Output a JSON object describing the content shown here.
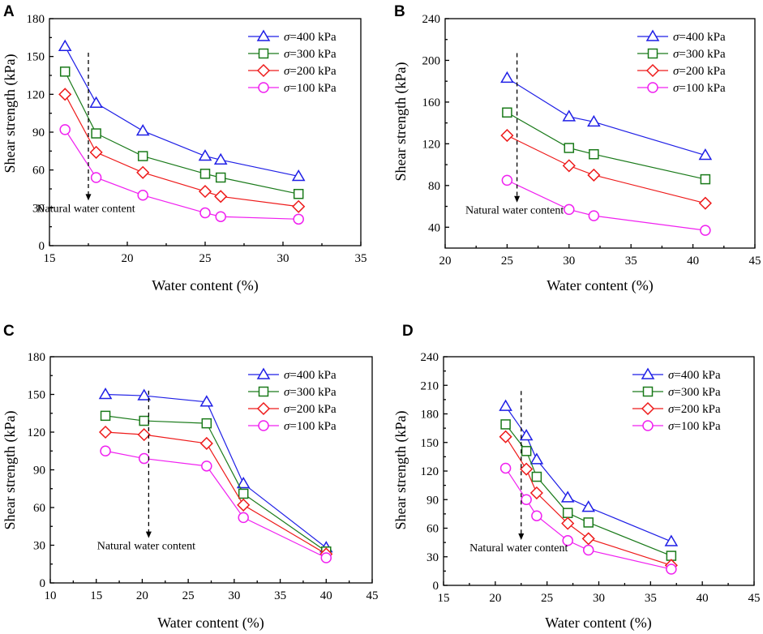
{
  "figure": {
    "colors": {
      "s400": "#1f1fe6",
      "s300": "#1a7a1a",
      "s200": "#ee1a1a",
      "s100": "#f020f0"
    },
    "marker_map": {
      "σ=400 kPa": "triangle",
      "σ=300 kPa": "square",
      "σ=200 kPa": "diamond",
      "σ=100 kPa": "circle"
    }
  },
  "chart_data": [
    {
      "panel": "A",
      "type": "line",
      "xlabel": "Water content (%)",
      "ylabel": "Shear strength (kPa)",
      "xlim": [
        15,
        35
      ],
      "ylim": [
        0,
        180
      ],
      "xticks": [
        15,
        20,
        25,
        30,
        35
      ],
      "yticks": [
        0,
        30,
        60,
        90,
        120,
        150,
        180
      ],
      "legend_position": "top-right",
      "annotation": {
        "text": "Natural water content",
        "x": 17.5
      },
      "series": [
        {
          "name": "σ=400 kPa",
          "sigma": "σ",
          "label_rest": "=400 kPa",
          "color_key": "s400",
          "marker": "triangle",
          "x": [
            16,
            18,
            21,
            25,
            26,
            31
          ],
          "values": [
            158,
            113,
            91,
            71,
            68,
            55
          ]
        },
        {
          "name": "σ=300 kPa",
          "sigma": "σ",
          "label_rest": "=300 kPa",
          "color_key": "s300",
          "marker": "square",
          "x": [
            16,
            18,
            21,
            25,
            26,
            31
          ],
          "values": [
            138,
            89,
            71,
            57,
            54,
            41
          ]
        },
        {
          "name": "σ=200 kPa",
          "sigma": "σ",
          "label_rest": "=200 kPa",
          "color_key": "s200",
          "marker": "diamond",
          "x": [
            16,
            18,
            21,
            25,
            26,
            31
          ],
          "values": [
            120,
            74,
            58,
            43,
            39,
            31
          ]
        },
        {
          "name": "σ=100 kPa",
          "sigma": "σ",
          "label_rest": "=100 kPa",
          "color_key": "s100",
          "marker": "circle",
          "x": [
            16,
            18,
            21,
            25,
            26,
            31
          ],
          "values": [
            92,
            54,
            40,
            26,
            23,
            21
          ]
        }
      ]
    },
    {
      "panel": "B",
      "type": "line",
      "xlabel": "Water content (%)",
      "ylabel": "Shear strength (kPa)",
      "xlim": [
        20,
        45
      ],
      "ylim": [
        20,
        240
      ],
      "xticks": [
        20,
        25,
        30,
        35,
        40,
        45
      ],
      "yticks": [
        40,
        80,
        120,
        160,
        200,
        240
      ],
      "legend_position": "top-right",
      "annotation": {
        "text": "Natural water content",
        "x": 25.8
      },
      "series": [
        {
          "name": "σ=400 kPa",
          "sigma": "σ",
          "label_rest": "=400 kPa",
          "color_key": "s400",
          "marker": "triangle",
          "x": [
            25,
            30,
            32,
            41
          ],
          "values": [
            183,
            146,
            141,
            109
          ]
        },
        {
          "name": "σ=300 kPa",
          "sigma": "σ",
          "label_rest": "=300 kPa",
          "color_key": "s300",
          "marker": "square",
          "x": [
            25,
            30,
            32,
            41
          ],
          "values": [
            150,
            116,
            110,
            86
          ]
        },
        {
          "name": "σ=200 kPa",
          "sigma": "σ",
          "label_rest": "=200 kPa",
          "color_key": "s200",
          "marker": "diamond",
          "x": [
            25,
            30,
            32,
            41
          ],
          "values": [
            128,
            99,
            90,
            63
          ]
        },
        {
          "name": "σ=100 kPa",
          "sigma": "σ",
          "label_rest": "=100 kPa",
          "color_key": "s100",
          "marker": "circle",
          "x": [
            25,
            30,
            32,
            41
          ],
          "values": [
            85,
            57,
            51,
            37
          ]
        }
      ]
    },
    {
      "panel": "C",
      "type": "line",
      "xlabel": "Water content (%)",
      "ylabel": "Shear strength (kPa)",
      "xlim": [
        10,
        45
      ],
      "ylim": [
        0,
        180
      ],
      "xticks": [
        10,
        15,
        20,
        25,
        30,
        35,
        40,
        45
      ],
      "yticks": [
        0,
        30,
        60,
        90,
        120,
        150,
        180
      ],
      "legend_position": "top-right",
      "annotation": {
        "text": "Natural water content",
        "x": 20.7
      },
      "series": [
        {
          "name": "σ=400 kPa",
          "sigma": "σ",
          "label_rest": "=400 kPa",
          "color_key": "s400",
          "marker": "triangle",
          "x": [
            16,
            20.2,
            27,
            31,
            40
          ],
          "values": [
            150,
            149,
            144,
            79,
            28
          ]
        },
        {
          "name": "σ=300 kPa",
          "sigma": "σ",
          "label_rest": "=300 kPa",
          "color_key": "s300",
          "marker": "square",
          "x": [
            16,
            20.2,
            27,
            31,
            40
          ],
          "values": [
            133,
            129,
            127,
            71,
            25
          ]
        },
        {
          "name": "σ=200 kPa",
          "sigma": "σ",
          "label_rest": "=200 kPa",
          "color_key": "s200",
          "marker": "diamond",
          "x": [
            16,
            20.2,
            27,
            31,
            40
          ],
          "values": [
            120,
            118,
            111,
            62,
            23
          ]
        },
        {
          "name": "σ=100 kPa",
          "sigma": "σ",
          "label_rest": "=100 kPa",
          "color_key": "s100",
          "marker": "circle",
          "x": [
            16,
            20.2,
            27,
            31,
            40
          ],
          "values": [
            105,
            99,
            93,
            52,
            20
          ]
        }
      ]
    },
    {
      "panel": "D",
      "type": "line",
      "xlabel": "Water content (%)",
      "ylabel": "Shear strength (kPa)",
      "xlim": [
        15,
        45
      ],
      "ylim": [
        0,
        240
      ],
      "xticks": [
        15,
        20,
        25,
        30,
        35,
        40,
        45
      ],
      "yticks": [
        0,
        30,
        60,
        90,
        120,
        150,
        180,
        210,
        240
      ],
      "legend_position": "top-right",
      "annotation": {
        "text": "Natural water content",
        "x": 22.5
      },
      "series": [
        {
          "name": "σ=400 kPa",
          "sigma": "σ",
          "label_rest": "=400 kPa",
          "color_key": "s400",
          "marker": "triangle",
          "x": [
            21,
            23,
            24,
            27,
            29,
            37
          ],
          "values": [
            188,
            157,
            132,
            92,
            82,
            46
          ]
        },
        {
          "name": "σ=300 kPa",
          "sigma": "σ",
          "label_rest": "=300 kPa",
          "color_key": "s300",
          "marker": "square",
          "x": [
            21,
            23,
            24,
            27,
            29,
            37
          ],
          "values": [
            169,
            141,
            114,
            76,
            66,
            31
          ]
        },
        {
          "name": "σ=200 kPa",
          "sigma": "σ",
          "label_rest": "=200 kPa",
          "color_key": "s200",
          "marker": "diamond",
          "x": [
            21,
            23,
            24,
            27,
            29,
            37
          ],
          "values": [
            156,
            122,
            97,
            65,
            49,
            21
          ]
        },
        {
          "name": "σ=100 kPa",
          "sigma": "σ",
          "label_rest": "=100 kPa",
          "color_key": "s100",
          "marker": "circle",
          "x": [
            21,
            23,
            24,
            27,
            29,
            37
          ],
          "values": [
            123,
            90,
            73,
            47,
            37,
            17
          ]
        }
      ]
    }
  ]
}
